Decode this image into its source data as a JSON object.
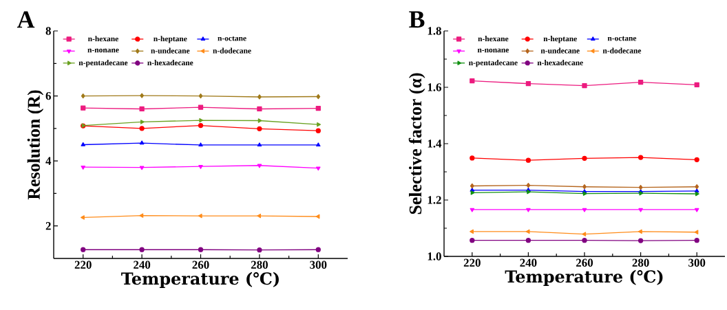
{
  "chart_data": [
    {
      "type": "line",
      "title": "A",
      "xlabel": "Temperature (℃)",
      "ylabel": "Resolution (R)",
      "x": [
        220,
        240,
        260,
        280,
        300
      ],
      "xlim": [
        210,
        310
      ],
      "xticks": [
        220,
        240,
        260,
        280,
        300
      ],
      "ylim": [
        1,
        8
      ],
      "yticks": [
        2,
        4,
        6,
        8
      ],
      "legend": "top",
      "line_style": "solid",
      "series": [
        {
          "name": "n-hexane",
          "color": "#ec1b7f",
          "marker": "square",
          "values": [
            5.63,
            5.6,
            5.65,
            5.6,
            5.62
          ]
        },
        {
          "name": "n-heptane",
          "color": "#ff0000",
          "marker": "circle",
          "values": [
            5.08,
            5.0,
            5.09,
            4.99,
            4.93
          ]
        },
        {
          "name": "n-octane",
          "color": "#0000ff",
          "marker": "triangle",
          "values": [
            4.5,
            4.55,
            4.49,
            4.49,
            4.49
          ]
        },
        {
          "name": "n-nonane",
          "color": "#ff00ff",
          "marker": "triangle-down",
          "values": [
            3.81,
            3.8,
            3.83,
            3.86,
            3.78
          ]
        },
        {
          "name": "n-undecane",
          "color": "#a07a1a",
          "marker": "diamond",
          "values": [
            6.0,
            6.01,
            6.0,
            5.97,
            5.98
          ]
        },
        {
          "name": "n-dodecane",
          "color": "#ff8c1a",
          "marker": "triangle-left",
          "values": [
            2.26,
            2.32,
            2.31,
            2.31,
            2.29
          ]
        },
        {
          "name": "n-pentadecane",
          "color": "#6aa121",
          "marker": "triangle-right",
          "values": [
            5.09,
            5.2,
            5.25,
            5.24,
            5.12
          ]
        },
        {
          "name": "n-hexadecane",
          "color": "#800080",
          "marker": "circle",
          "values": [
            1.27,
            1.27,
            1.27,
            1.26,
            1.27
          ]
        }
      ]
    },
    {
      "type": "line",
      "title": "B",
      "xlabel": "Temperature (℃)",
      "ylabel": "Selective factor (α)",
      "x": [
        220,
        240,
        260,
        280,
        300
      ],
      "xlim": [
        210,
        310
      ],
      "xticks": [
        220,
        240,
        260,
        280,
        300
      ],
      "ylim": [
        1.0,
        1.8
      ],
      "yticks": [
        {
          "value": 1.0,
          "label": "1.0"
        },
        {
          "value": 1.2,
          "label": "1.2"
        },
        {
          "value": 1.4,
          "label": "1.4"
        },
        {
          "value": 1.6,
          "label": "1.6"
        },
        {
          "value": 1.8,
          "label": "1.8"
        }
      ],
      "legend": "top",
      "line_style": "solid",
      "series": [
        {
          "name": "n-hexane",
          "color": "#ec1b7f",
          "marker": "square",
          "values": [
            1.623,
            1.613,
            1.606,
            1.618,
            1.609
          ]
        },
        {
          "name": "n-heptane",
          "color": "#ff0000",
          "marker": "circle",
          "values": [
            1.349,
            1.341,
            1.348,
            1.351,
            1.343
          ]
        },
        {
          "name": "n-octane",
          "color": "#0000ff",
          "marker": "triangle",
          "values": [
            1.235,
            1.235,
            1.23,
            1.23,
            1.232
          ]
        },
        {
          "name": "n-nonane",
          "color": "#ff00ff",
          "marker": "triangle-down",
          "values": [
            1.166,
            1.166,
            1.166,
            1.166,
            1.166
          ]
        },
        {
          "name": "n-undecane",
          "color": "#b5651d",
          "marker": "diamond",
          "values": [
            1.25,
            1.252,
            1.247,
            1.245,
            1.247
          ]
        },
        {
          "name": "n-dodecane",
          "color": "#ff8c1a",
          "marker": "triangle-left",
          "values": [
            1.088,
            1.088,
            1.079,
            1.088,
            1.086
          ]
        },
        {
          "name": "n-pentadecane",
          "color": "#109010",
          "marker": "triangle-right",
          "values": [
            1.226,
            1.229,
            1.223,
            1.224,
            1.222
          ]
        },
        {
          "name": "n-hexadecane",
          "color": "#800080",
          "marker": "circle",
          "values": [
            1.057,
            1.057,
            1.057,
            1.056,
            1.057
          ]
        }
      ]
    }
  ]
}
